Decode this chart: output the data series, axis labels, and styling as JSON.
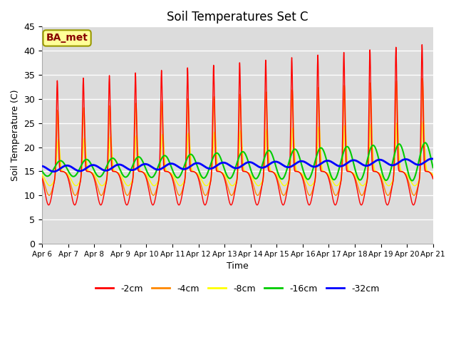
{
  "title": "Soil Temperatures Set C",
  "xlabel": "Time",
  "ylabel": "Soil Temperature (C)",
  "ylim": [
    0,
    45
  ],
  "legend_labels": [
    "-2cm",
    "-4cm",
    "-8cm",
    "-16cm",
    "-32cm"
  ],
  "legend_colors": [
    "#ff0000",
    "#ff8800",
    "#ffff00",
    "#00cc00",
    "#0000ff"
  ],
  "background_color": "#dcdcdc",
  "label_box_text": "BA_met",
  "label_box_facecolor": "#ffff99",
  "label_box_edgecolor": "#999900",
  "label_text_color": "#880000",
  "tick_dates": [
    "Apr 6",
    "Apr 7",
    "Apr 8",
    "Apr 9",
    "Apr 10",
    "Apr 11",
    "Apr 12",
    "Apr 13",
    "Apr 14",
    "Apr 15",
    "Apr 16",
    "Apr 17",
    "Apr 18",
    "Apr 19",
    "Apr 20",
    "Apr 21"
  ],
  "n_days": 15,
  "pts_per_day": 288
}
